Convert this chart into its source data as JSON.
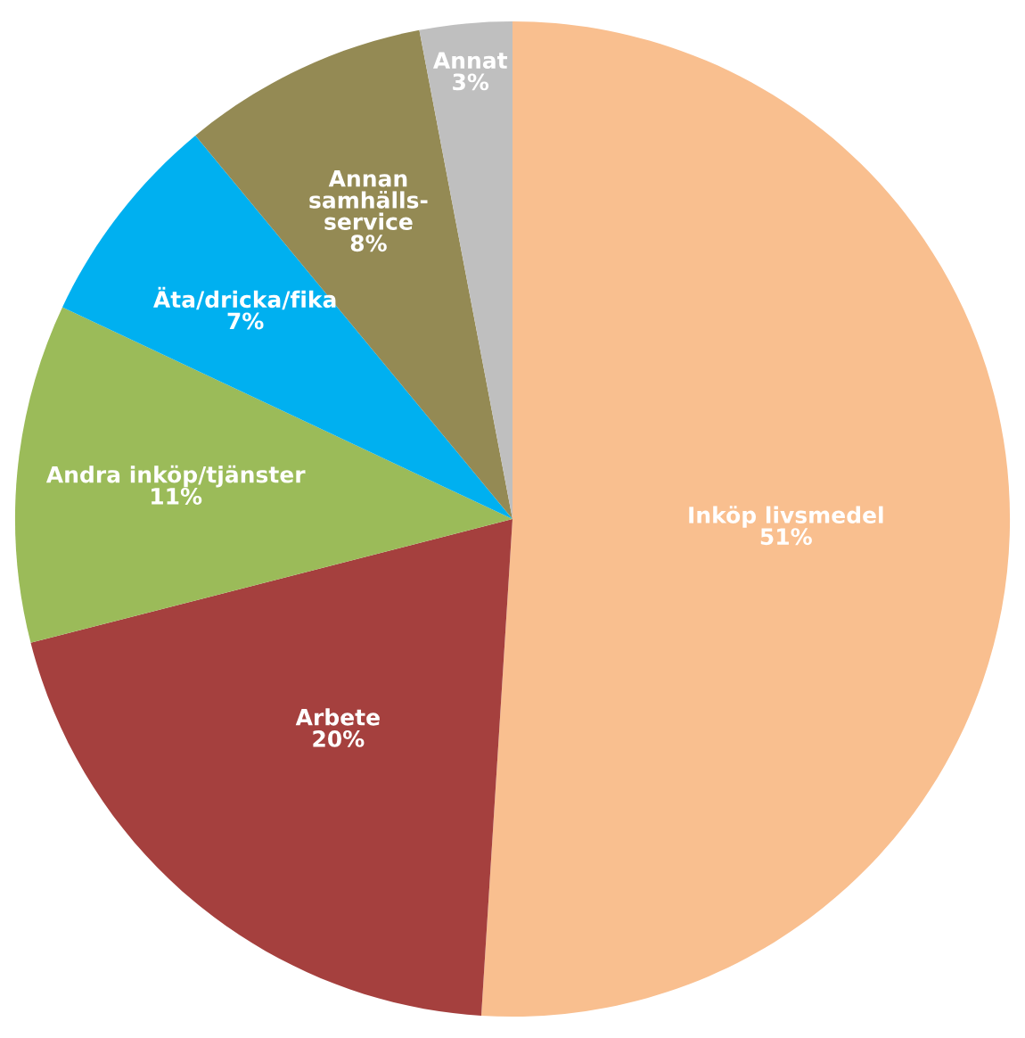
{
  "chart_data": {
    "type": "pie",
    "categories": [
      "Inköp livsmedel",
      "Arbete",
      "Andra inköp/tjänster",
      "Äta/dricka/fika",
      "Annan\nsamhälls-\nservice",
      "Annat"
    ],
    "values": [
      51,
      20,
      11,
      7,
      8,
      3
    ],
    "colors": [
      "#f9bf8f",
      "#a5403e",
      "#9bbb59",
      "#00b0f0",
      "#948a54",
      "#bfbfbf"
    ],
    "value_labels": [
      "51%",
      "20%",
      "11%",
      "7%",
      "8%",
      "3%"
    ]
  }
}
